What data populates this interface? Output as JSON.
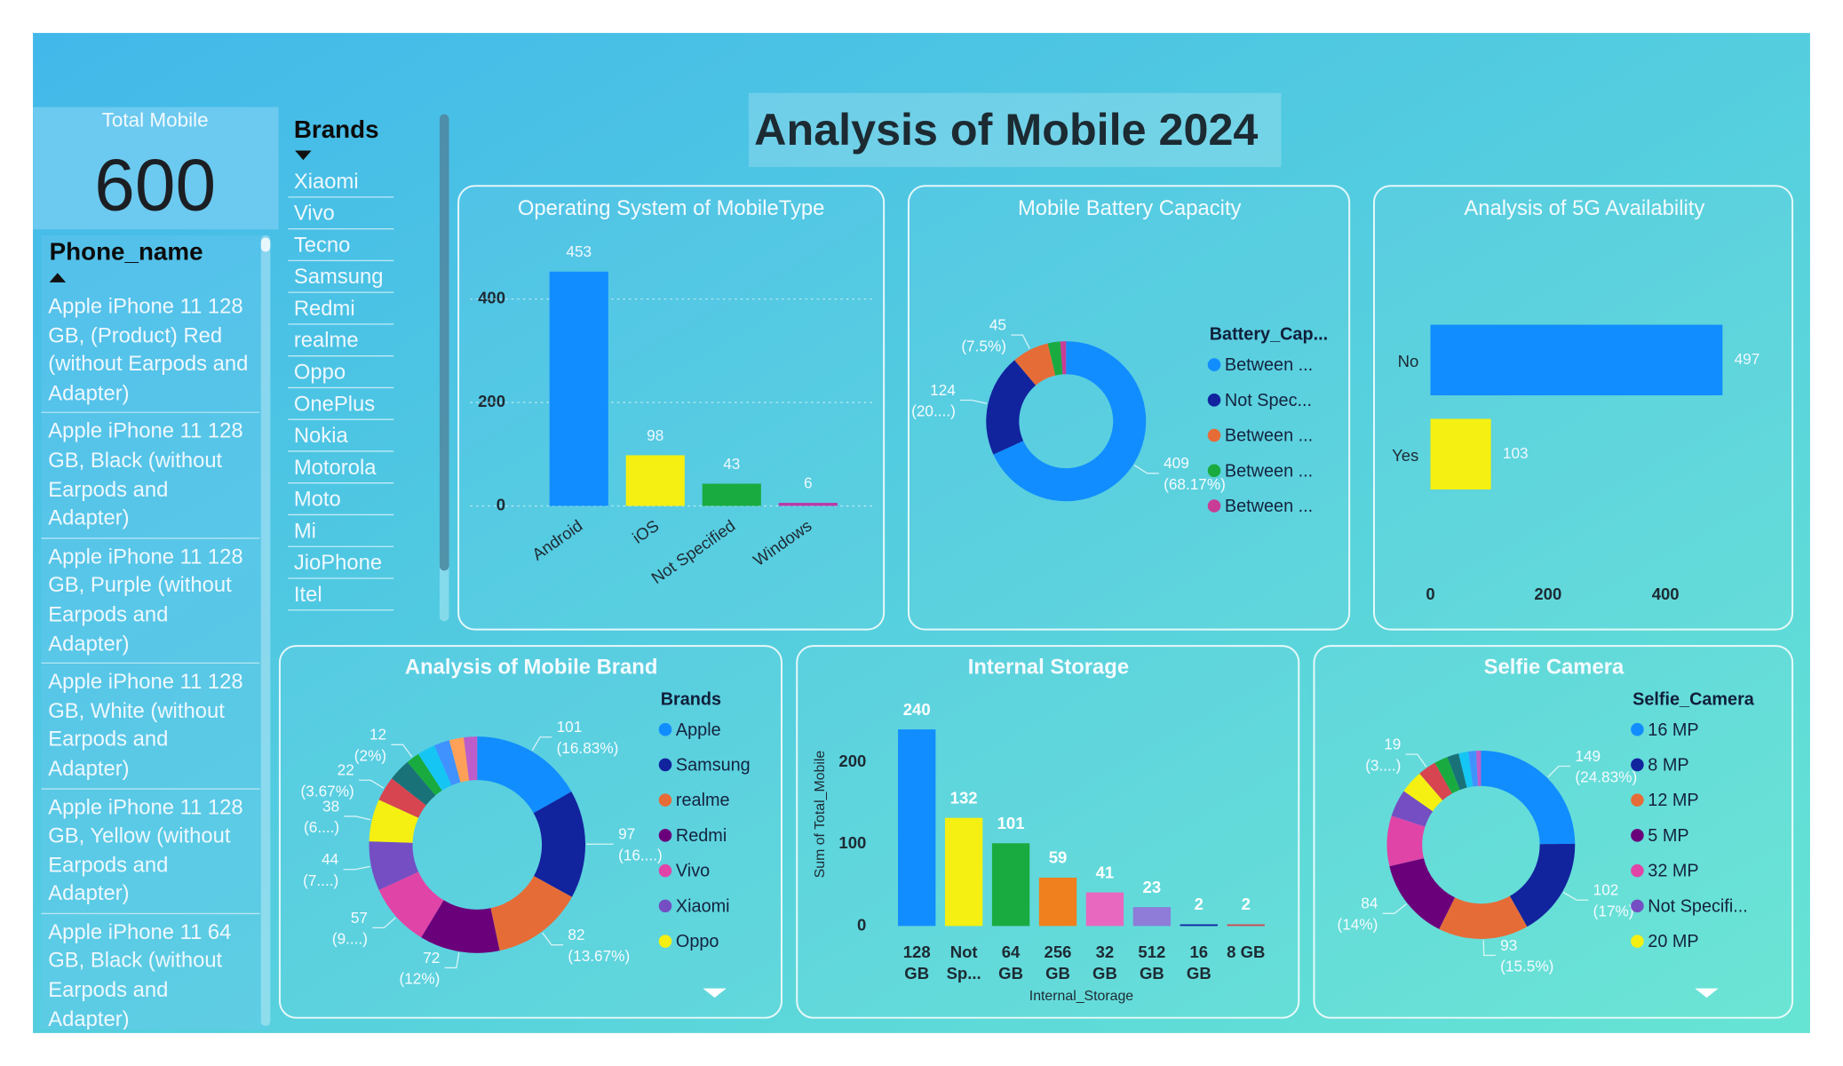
{
  "title": "Analysis of Mobile 2024",
  "card": {
    "label": "Total Mobile",
    "value": 600
  },
  "phone_slicer": {
    "header": "Phone_name",
    "items": [
      "Apple iPhone 11 128 GB, (Product) Red (without Earpods and Adapter)",
      "Apple iPhone 11 128 GB, Black (without Earpods and Adapter)",
      "Apple iPhone 11 128 GB, Purple (without Earpods and Adapter)",
      "Apple iPhone 11 128 GB, White (without Earpods and Adapter)",
      "Apple iPhone 11 128 GB, Yellow (without Earpods and Adapter)",
      "Apple iPhone 11 64 GB, Black (without Earpods and Adapter)"
    ]
  },
  "brand_slicer": {
    "header": "Brands",
    "items": [
      "Xiaomi",
      "Vivo",
      "Tecno",
      "Samsung",
      "Redmi",
      "realme",
      "Oppo",
      "OnePlus",
      "Nokia",
      "Motorola",
      "Moto",
      "Mi",
      "JioPhone",
      "Itel"
    ]
  },
  "chart_data": [
    {
      "type": "bar",
      "title": "Operating System of MobileType",
      "categories": [
        "Android",
        "iOS",
        "Not Specified",
        "Windows"
      ],
      "values": [
        453,
        98,
        43,
        6
      ],
      "colors": [
        "#118DFF",
        "#F5F011",
        "#1AAB40",
        "#B83AA8"
      ],
      "ylim": [
        0,
        480
      ],
      "yticks": [
        0,
        200,
        400
      ],
      "grid": true
    },
    {
      "type": "donut",
      "title": "Mobile Battery Capacity",
      "legend_title": "Battery_Cap...",
      "categories": [
        "Between ...",
        "Not Spec...",
        "Between ...",
        "Between ...",
        "Between ..."
      ],
      "values": [
        409,
        124,
        45,
        15,
        7
      ],
      "percent_labels": [
        "(68.17%)",
        "(20....)",
        "(7.5%)",
        null,
        null
      ],
      "colors": [
        "#118DFF",
        "#12239E",
        "#E66C37",
        "#1AAB40",
        "#C83D95"
      ]
    },
    {
      "type": "bar",
      "horizontal": true,
      "title": "Analysis of 5G Availability",
      "categories": [
        "No",
        "Yes"
      ],
      "values": [
        497,
        103
      ],
      "colors": [
        "#118DFF",
        "#F5F011"
      ],
      "xlim": [
        0,
        500
      ],
      "xticks": [
        0,
        200,
        400
      ],
      "grid": false
    },
    {
      "type": "donut",
      "title": "Analysis of Mobile Brand",
      "legend_title": "Brands",
      "categories": [
        "Apple",
        "Samsung",
        "realme",
        "Redmi",
        "Vivo",
        "Xiaomi",
        "Oppo",
        null,
        null,
        null,
        null,
        null,
        null,
        null
      ],
      "values": [
        101,
        97,
        82,
        72,
        57,
        44,
        38,
        22,
        20,
        12,
        16,
        14,
        13,
        12
      ],
      "percent_labels": [
        "(16.83%)",
        "(16....)",
        "(13.67%)",
        "(12%)",
        "(9....)",
        "(7....)",
        "(6....)",
        "(3.67%)",
        null,
        "(2%)",
        null,
        null,
        null,
        null
      ],
      "colors": [
        "#118DFF",
        "#12239E",
        "#E66C37",
        "#6B007B",
        "#E044A7",
        "#744EC2",
        "#F5F011",
        "#D64550",
        "#197278",
        "#1AAB40",
        "#15C6F4",
        "#4092FF",
        "#FFA058",
        "#BE5DC9"
      ]
    },
    {
      "type": "bar",
      "title": "Internal Storage",
      "x_label": "Internal_Storage",
      "y_label": "Sum of Total_Mobile",
      "categories": [
        "128 GB",
        "Not Sp...",
        "64 GB",
        "256 GB",
        "32 GB",
        "512 GB",
        "16 GB",
        "8 GB"
      ],
      "values": [
        240,
        132,
        101,
        59,
        41,
        23,
        2,
        2
      ],
      "colors": [
        "#118DFF",
        "#F5F011",
        "#1AAB40",
        "#F07F1E",
        "#E868C0",
        "#8E7CD8",
        "#12239E",
        "#D64550"
      ],
      "ylim": [
        0,
        260
      ],
      "yticks": [
        0,
        100,
        200
      ],
      "grid": false
    },
    {
      "type": "donut",
      "title": "Selfie Camera",
      "legend_title": "Selfie_Camera",
      "categories": [
        "16 MP",
        "8 MP",
        "12 MP",
        "5 MP",
        "32 MP",
        "Not Specifi...",
        "20 MP",
        null,
        null,
        null,
        null,
        null,
        null
      ],
      "values": [
        149,
        102,
        93,
        84,
        52,
        28,
        24,
        19,
        14,
        12,
        10,
        8,
        5
      ],
      "percent_labels": [
        "(24.83%)",
        "(17%)",
        "(15.5%)",
        "(14%)",
        null,
        null,
        null,
        "(3....)",
        null,
        null,
        null,
        null,
        null
      ],
      "colors": [
        "#118DFF",
        "#12239E",
        "#E66C37",
        "#6B007B",
        "#E044A7",
        "#744EC2",
        "#F5F011",
        "#D64550",
        "#1AAB40",
        "#197278",
        "#15C6F4",
        "#4092FF",
        "#BE5DC9"
      ]
    }
  ]
}
